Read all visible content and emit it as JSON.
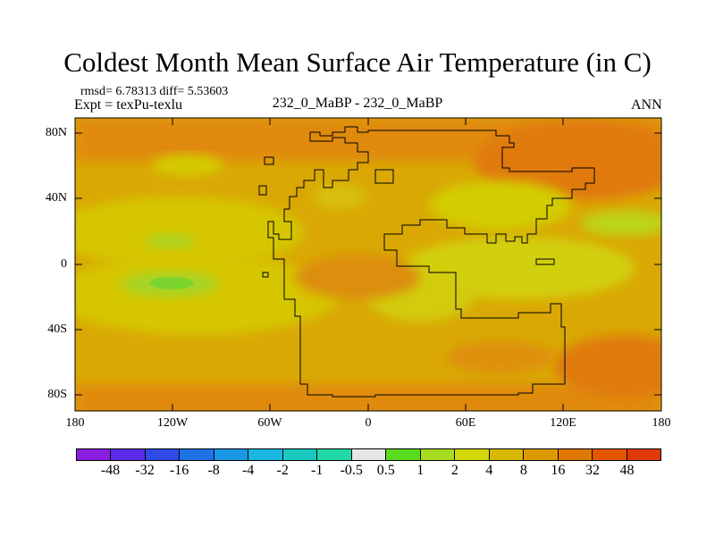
{
  "title": "Coldest Month Mean Surface Air Temperature (in C)",
  "stats": "rmsd= 6.78313 diff= 5.53603",
  "experiment": "Expt = texPu-texlu",
  "case": "232_0_MaBP - 232_0_MaBP",
  "period": "ANN",
  "map": {
    "y_labels": [
      "80N",
      "40N",
      "0",
      "40S",
      "80S"
    ],
    "x_labels": [
      "180",
      "120W",
      "60W",
      "0",
      "60E",
      "120E",
      "180"
    ]
  },
  "colorbar": {
    "labels": [
      "-48",
      "-32",
      "-16",
      "-8",
      "-4",
      "-2",
      "-1",
      "-0.5",
      "0.5",
      "1",
      "2",
      "4",
      "8",
      "16",
      "32",
      "48"
    ],
    "colors": [
      "#8a1ee0",
      "#5a2be6",
      "#2f4ae6",
      "#1f72e6",
      "#1a98e8",
      "#1ab8e0",
      "#1ac8c0",
      "#20d8a8",
      "#e6e6e6",
      "#5adc1e",
      "#a8dc20",
      "#d2d80a",
      "#d8b800",
      "#dc9a00",
      "#e07800",
      "#e45600",
      "#e03a0a"
    ]
  },
  "colors": {
    "high_lat": "#df7f0c",
    "mid": "#dba304",
    "tropical": "#d4cb02",
    "warm_spot": "#c4d610",
    "green_spot": "#8bd62b",
    "outline": "#000000"
  }
}
